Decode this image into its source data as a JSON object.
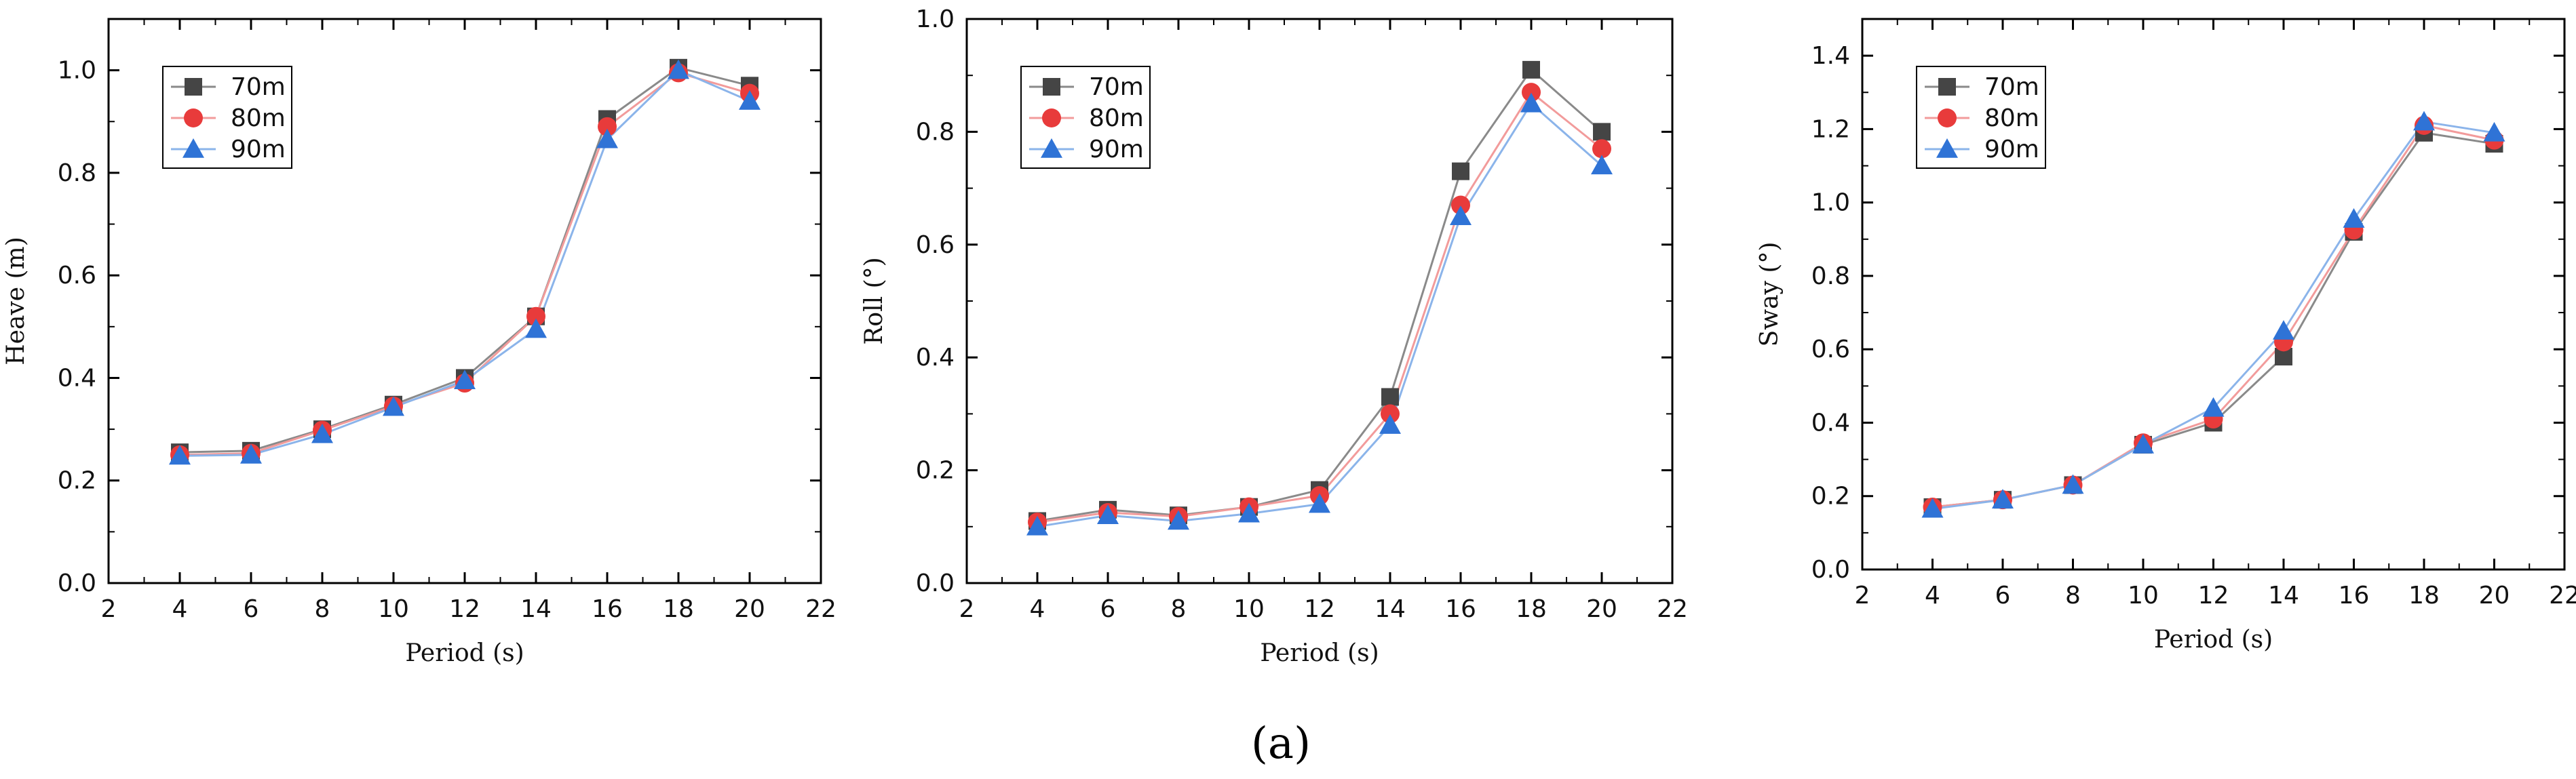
{
  "figure": {
    "caption": "(a)"
  },
  "series_style": [
    {
      "marker": "square",
      "color": "#454545",
      "line": "#8a8a8a"
    },
    {
      "marker": "circle",
      "color": "#e83b3b",
      "line": "#f29b9b"
    },
    {
      "marker": "triangle",
      "color": "#2f73d6",
      "line": "#8bb4ea"
    }
  ],
  "chart_data": [
    {
      "type": "line",
      "title": "",
      "xlabel": "Period (s)",
      "ylabel": "Heave (m)",
      "xlim": [
        2,
        22
      ],
      "ylim": [
        0.0,
        1.1
      ],
      "xticks": [
        2,
        4,
        6,
        8,
        10,
        12,
        14,
        16,
        18,
        20,
        22
      ],
      "yticks": [
        0.0,
        0.2,
        0.4,
        0.6,
        0.8,
        1.0
      ],
      "ytick_labels": [
        "0.0",
        "0.2",
        "0.4",
        "0.6",
        "0.8",
        "1.0"
      ],
      "legend_position": "top-left",
      "x": [
        4,
        6,
        8,
        10,
        12,
        14,
        16,
        18,
        20
      ],
      "series": [
        {
          "name": "70m",
          "values": [
            0.255,
            0.258,
            0.3,
            0.348,
            0.4,
            0.52,
            0.905,
            1.005,
            0.97
          ]
        },
        {
          "name": "80m",
          "values": [
            0.25,
            0.253,
            0.298,
            0.345,
            0.39,
            0.52,
            0.89,
            0.995,
            0.955
          ]
        },
        {
          "name": "90m",
          "values": [
            0.248,
            0.25,
            0.29,
            0.343,
            0.395,
            0.495,
            0.865,
            1.0,
            0.94
          ]
        }
      ]
    },
    {
      "type": "line",
      "title": "",
      "xlabel": "Period (s)",
      "ylabel": "Roll (°)",
      "xlim": [
        2,
        22
      ],
      "ylim": [
        0.0,
        1.0
      ],
      "xticks": [
        2,
        4,
        6,
        8,
        10,
        12,
        14,
        16,
        18,
        20,
        22
      ],
      "yticks": [
        0.0,
        0.2,
        0.4,
        0.6,
        0.8,
        1.0
      ],
      "ytick_labels": [
        "0.0",
        "0.2",
        "0.4",
        "0.6",
        "0.8",
        "1.0"
      ],
      "legend_position": "top-left",
      "x": [
        4,
        6,
        8,
        10,
        12,
        14,
        16,
        18,
        20
      ],
      "series": [
        {
          "name": "70m",
          "values": [
            0.11,
            0.13,
            0.12,
            0.135,
            0.165,
            0.33,
            0.73,
            0.91,
            0.8
          ]
        },
        {
          "name": "80m",
          "values": [
            0.108,
            0.125,
            0.118,
            0.135,
            0.155,
            0.3,
            0.67,
            0.87,
            0.77
          ]
        },
        {
          "name": "90m",
          "values": [
            0.1,
            0.12,
            0.11,
            0.123,
            0.14,
            0.28,
            0.65,
            0.85,
            0.74
          ]
        }
      ]
    },
    {
      "type": "line",
      "title": "",
      "xlabel": "Period (s)",
      "ylabel": "Sway (°)",
      "xlim": [
        2,
        22
      ],
      "ylim": [
        0.0,
        1.5
      ],
      "xticks": [
        2,
        4,
        6,
        8,
        10,
        12,
        14,
        16,
        18,
        20,
        22
      ],
      "yticks": [
        0.0,
        0.2,
        0.4,
        0.6,
        0.8,
        1.0,
        1.2,
        1.4
      ],
      "ytick_labels": [
        "0.0",
        "0.2",
        "0.4",
        "0.6",
        "0.8",
        "1.0",
        "1.2",
        "1.4"
      ],
      "legend_position": "top-left",
      "x": [
        4,
        6,
        8,
        10,
        12,
        14,
        16,
        18,
        20
      ],
      "series": [
        {
          "name": "70m",
          "values": [
            0.17,
            0.19,
            0.23,
            0.34,
            0.4,
            0.58,
            0.92,
            1.19,
            1.16
          ]
        },
        {
          "name": "80m",
          "values": [
            0.17,
            0.19,
            0.23,
            0.345,
            0.41,
            0.62,
            0.925,
            1.21,
            1.17
          ]
        },
        {
          "name": "90m",
          "values": [
            0.165,
            0.19,
            0.23,
            0.34,
            0.44,
            0.65,
            0.955,
            1.22,
            1.19
          ]
        }
      ]
    }
  ]
}
